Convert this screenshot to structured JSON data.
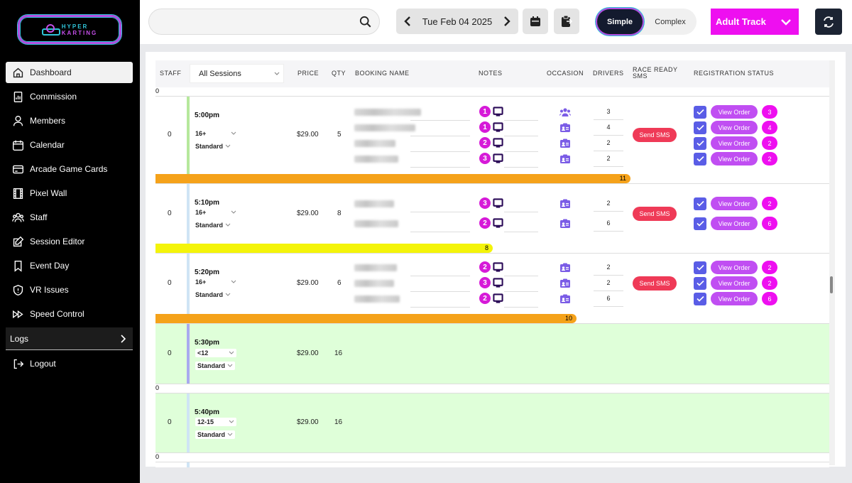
{
  "sidebar": {
    "logo": {
      "line1": "HYPER",
      "line2": "KARTING"
    },
    "items": [
      {
        "label": "Dashboard",
        "icon": "home-icon",
        "active": true
      },
      {
        "label": "Commission",
        "icon": "report-icon"
      },
      {
        "label": "Members",
        "icon": "user-icon"
      },
      {
        "label": "Calendar",
        "icon": "calendar-icon"
      },
      {
        "label": "Arcade Game Cards",
        "icon": "card-icon"
      },
      {
        "label": "Pixel Wall",
        "icon": "film-icon"
      },
      {
        "label": "Staff",
        "icon": "users-icon"
      },
      {
        "label": "Session Editor",
        "icon": "edit-icon"
      },
      {
        "label": "Event Day",
        "icon": "bookmark-icon"
      },
      {
        "label": "VR Issues",
        "icon": "shield-icon"
      },
      {
        "label": "Speed Control",
        "icon": "fast-forward-icon"
      }
    ],
    "logs_label": "Logs",
    "logout_label": "Logout"
  },
  "topbar": {
    "search_value": "",
    "date": "Tue Feb 04 2025",
    "toggle": {
      "simple": "Simple",
      "complex": "Complex",
      "selected": "Simple"
    },
    "track": "Adult Track"
  },
  "table": {
    "headers": {
      "staff": "STAFF",
      "price": "PRICE",
      "qty": "QTY",
      "booking": "BOOKING NAME",
      "notes": "NOTES",
      "occasion": "OCCASION",
      "drivers": "DRIVERS",
      "race_ready": "RACE READY SMS",
      "registration": "REGISTRATION STATUS"
    },
    "filter": "All Sessions",
    "top_zero": "0",
    "sessions": [
      {
        "staff": "0",
        "time": "5:00pm",
        "age": "16+",
        "type": "Standard",
        "price": "$29.00",
        "qty": "5",
        "sms": "Send SMS",
        "capacity": "11",
        "capacity_fill": 0.705,
        "bookings": [
          {
            "notes": "1",
            "occasion": "group",
            "drivers": "3",
            "reg": "3"
          },
          {
            "notes": "1",
            "occasion": "badge",
            "drivers": "4",
            "reg": "4"
          },
          {
            "notes": "2",
            "occasion": "badge",
            "drivers": "2",
            "reg": "2"
          },
          {
            "notes": "3",
            "occasion": "badge",
            "drivers": "2",
            "reg": "2"
          }
        ]
      },
      {
        "staff": "0",
        "time": "5:10pm",
        "age": "16+",
        "type": "Standard",
        "price": "$29.00",
        "qty": "8",
        "sms": "Send SMS",
        "capacity": "8",
        "capacity_fill": 0.5,
        "bookings": [
          {
            "notes": "3",
            "occasion": "badge",
            "drivers": "2",
            "reg": "2"
          },
          {
            "notes": "2",
            "occasion": "badge",
            "drivers": "6",
            "reg": "6"
          }
        ]
      },
      {
        "staff": "0",
        "time": "5:20pm",
        "age": "16+",
        "type": "Standard",
        "price": "$29.00",
        "qty": "6",
        "sms": "Send SMS",
        "capacity": "10",
        "capacity_fill": 0.625,
        "bookings": [
          {
            "notes": "2",
            "occasion": "badge",
            "drivers": "2",
            "reg": "2"
          },
          {
            "notes": "3",
            "occasion": "badge",
            "drivers": "2",
            "reg": "2"
          },
          {
            "notes": "2",
            "occasion": "badge",
            "drivers": "6",
            "reg": "6"
          }
        ]
      },
      {
        "staff": "0",
        "time": "5:30pm",
        "age": "<12",
        "type": "Standard",
        "price": "$29.00",
        "qty": "16",
        "zero": "0"
      },
      {
        "staff": "0",
        "time": "5:40pm",
        "age": "12-15",
        "type": "Standard",
        "price": "$29.00",
        "qty": "16",
        "zero": "0"
      }
    ],
    "view_order_label": "View Order"
  },
  "colors": {
    "accent": "#ee0ff0",
    "orange": "#f5a21a",
    "yellow": "#f4f40a",
    "green_row": "#dfffd9",
    "bar_green": "#b6e89c",
    "bar_blue": "#cfe4f5",
    "bar_purple": "#a9a9ef"
  }
}
